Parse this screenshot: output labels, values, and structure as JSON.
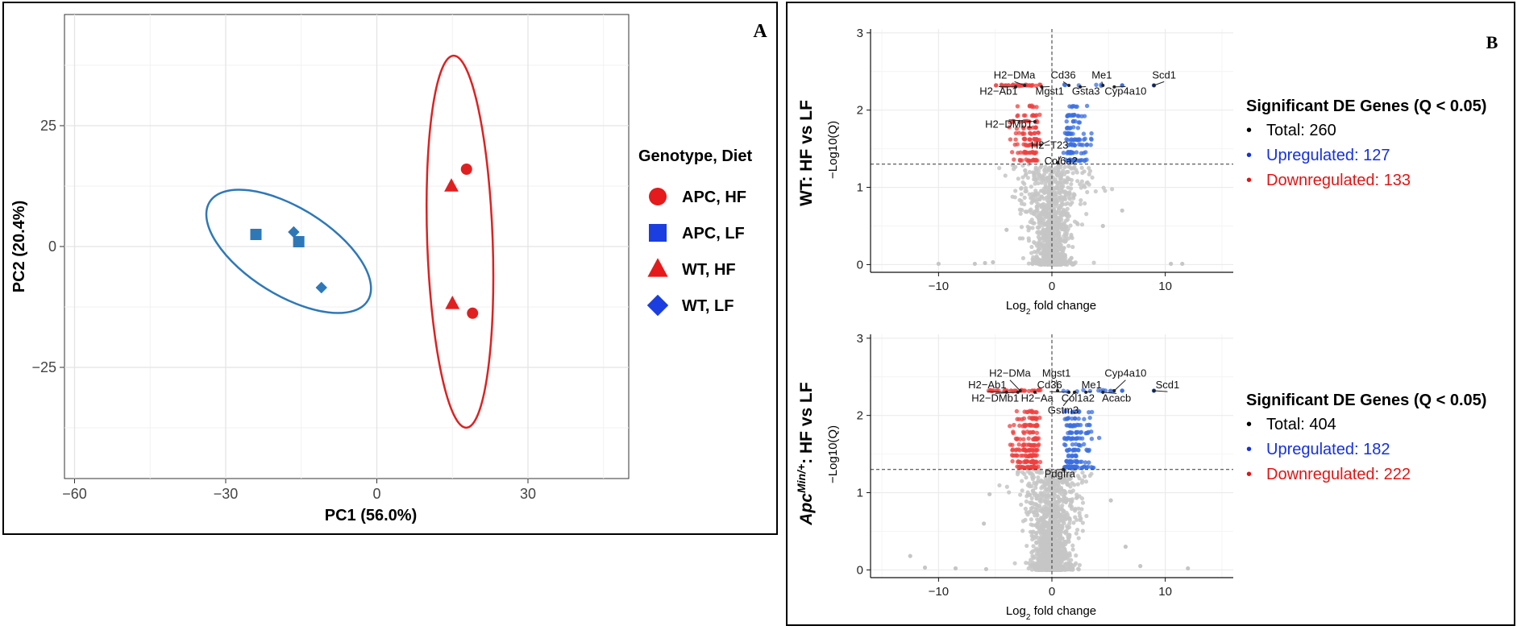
{
  "panel_a": {
    "label": "A",
    "chart_data": {
      "type": "scatter",
      "xlabel": "PC1 (56.0%)",
      "ylabel": "PC2 (20.4%)",
      "xlim": [
        -62,
        50
      ],
      "ylim": [
        -48,
        48
      ],
      "xticks": [
        -60,
        -30,
        0,
        30
      ],
      "yticks": [
        -25,
        0,
        25
      ],
      "grid": true,
      "legend_title": "Genotype, Diet",
      "legend_placement": "right",
      "series": [
        {
          "name": "APC, HF",
          "shape": "circle",
          "color": "#e02020",
          "x": [
            17.8,
            19.0
          ],
          "y": [
            16.0,
            -13.8
          ]
        },
        {
          "name": "APC, LF",
          "shape": "square",
          "color": "#2e78b8",
          "x": [
            -24.0,
            -15.5
          ],
          "y": [
            2.5,
            1.0
          ]
        },
        {
          "name": "WT, HF",
          "shape": "triangle",
          "color": "#e02020",
          "x": [
            14.8,
            15.0
          ],
          "y": [
            12.5,
            -11.8
          ]
        },
        {
          "name": "WT, LF",
          "shape": "diamond",
          "color": "#2e78b8",
          "x": [
            -16.5,
            -11.0
          ],
          "y": [
            3.0,
            -8.5
          ]
        }
      ],
      "ellipses": [
        {
          "color": "#e02020",
          "cx": 16.5,
          "cy": 1.0,
          "rx": 6.5,
          "ry": 38.5,
          "angle": -2
        },
        {
          "color": "#2e78b8",
          "cx": -17.5,
          "cy": -1.0,
          "rx": 18.5,
          "ry": 9.0,
          "angle": 32
        }
      ],
      "legend_colors": {
        "APC, HF": "#e41a1c",
        "APC, LF": "#1a3ee0",
        "WT, HF": "#e41a1c",
        "WT, LF": "#1a3ee0"
      }
    }
  },
  "panel_b": {
    "label": "B",
    "volcanoes": [
      {
        "row_label_plain": "WT: HF vs LF",
        "chart_data": {
          "type": "scatter",
          "title": "",
          "xlabel_base": "Log",
          "xlabel_sub": "2",
          "xlabel_rest": " fold change",
          "ylabel": "−Log10(Q)",
          "xlim": [
            -16,
            16
          ],
          "ylim": [
            -0.1,
            3.05
          ],
          "xticks": [
            -10,
            0,
            10
          ],
          "yticks": [
            0,
            1,
            2,
            3
          ],
          "threshold_y": 1.3,
          "threshold_x": 0,
          "counts": {
            "total": 260,
            "up": 127,
            "down": 133
          },
          "labels": [
            {
              "text": "H2−DMa",
              "x": -3.3,
              "y": 2.41,
              "px": -2.4,
              "py": 2.32
            },
            {
              "text": "Cd36",
              "x": 1.0,
              "y": 2.41,
              "px": 1.5,
              "py": 2.32
            },
            {
              "text": "Me1",
              "x": 4.4,
              "y": 2.41,
              "px": 4.5,
              "py": 2.32
            },
            {
              "text": "Scd1",
              "x": 9.9,
              "y": 2.41,
              "px": 9.0,
              "py": 2.32
            },
            {
              "text": "H2−Ab1",
              "x": -4.7,
              "y": 2.2,
              "px": -3.2,
              "py": 2.3
            },
            {
              "text": "Mgst1",
              "x": -0.2,
              "y": 2.2,
              "px": -0.9,
              "py": 2.3
            },
            {
              "text": "Gsta3",
              "x": 3.0,
              "y": 2.2,
              "px": 2.5,
              "py": 2.3
            },
            {
              "text": "Cyp4a10",
              "x": 6.5,
              "y": 2.2,
              "px": 5.5,
              "py": 2.3
            },
            {
              "text": "H2−DMb1",
              "x": -3.8,
              "y": 1.77,
              "px": -1.5,
              "py": 1.85
            },
            {
              "text": "H2−T23",
              "x": -0.2,
              "y": 1.5,
              "px": -1.0,
              "py": 1.55
            },
            {
              "text": "Col6a2",
              "x": 0.8,
              "y": 1.3,
              "px": 0.5,
              "py": 1.32
            }
          ]
        },
        "legend": {
          "title": "Significant DE Genes (Q < 0.05)",
          "total": "Total: 260",
          "up": "Upregulated: 127",
          "down": "Downregulated: 133"
        }
      },
      {
        "row_label_italic": "Apc",
        "row_label_sup": "Min/+",
        "row_label_rest": ": HF vs LF",
        "chart_data": {
          "type": "scatter",
          "title": "",
          "xlabel_base": "Log",
          "xlabel_sub": "2",
          "xlabel_rest": " fold change",
          "ylabel": "−Log10(Q)",
          "xlim": [
            -16,
            16
          ],
          "ylim": [
            -0.1,
            3.05
          ],
          "xticks": [
            -10,
            0,
            10
          ],
          "yticks": [
            0,
            1,
            2,
            3
          ],
          "threshold_y": 1.3,
          "threshold_x": 0,
          "counts": {
            "total": 404,
            "up": 182,
            "down": 222
          },
          "labels": [
            {
              "text": "H2−DMa",
              "x": -3.7,
              "y": 2.5,
              "px": -2.8,
              "py": 2.32
            },
            {
              "text": "Mgst1",
              "x": 0.4,
              "y": 2.5,
              "px": 0.5,
              "py": 2.32
            },
            {
              "text": "Cyp4a10",
              "x": 6.5,
              "y": 2.5,
              "px": 5.5,
              "py": 2.32
            },
            {
              "text": "Scd1",
              "x": 10.2,
              "y": 2.35,
              "px": 9.0,
              "py": 2.32
            },
            {
              "text": "H2−Ab1",
              "x": -5.7,
              "y": 2.35,
              "px": -4.0,
              "py": 2.3
            },
            {
              "text": "Cd36",
              "x": -0.2,
              "y": 2.35,
              "px": 1.5,
              "py": 2.3
            },
            {
              "text": "Me1",
              "x": 3.5,
              "y": 2.35,
              "px": 3.0,
              "py": 2.3
            },
            {
              "text": "H2−DMb1",
              "x": -5.0,
              "y": 2.18,
              "px": -3.0,
              "py": 2.3
            },
            {
              "text": "H2−Aa",
              "x": -1.3,
              "y": 2.18,
              "px": -1.5,
              "py": 2.3
            },
            {
              "text": "Col1a2",
              "x": 2.3,
              "y": 2.18,
              "px": 2.0,
              "py": 2.3
            },
            {
              "text": "Acacb",
              "x": 5.7,
              "y": 2.18,
              "px": 4.5,
              "py": 2.3
            },
            {
              "text": "Gstm3",
              "x": 1.0,
              "y": 2.02,
              "px": 2.0,
              "py": 2.3
            },
            {
              "text": "Pdgfra",
              "x": 0.7,
              "y": 1.2,
              "px": 1.0,
              "py": 1.3
            }
          ]
        },
        "legend": {
          "title": "Significant DE Genes (Q < 0.05)",
          "total": "Total: 404",
          "up": "Upregulated: 182",
          "down": "Downregulated: 222"
        }
      }
    ]
  },
  "colors": {
    "sig_up": "#3b6fe0",
    "sig_down": "#ef4040",
    "nonsig": "#c6c6c6",
    "legend_up": "#1530e0",
    "legend_down": "#e01515"
  }
}
